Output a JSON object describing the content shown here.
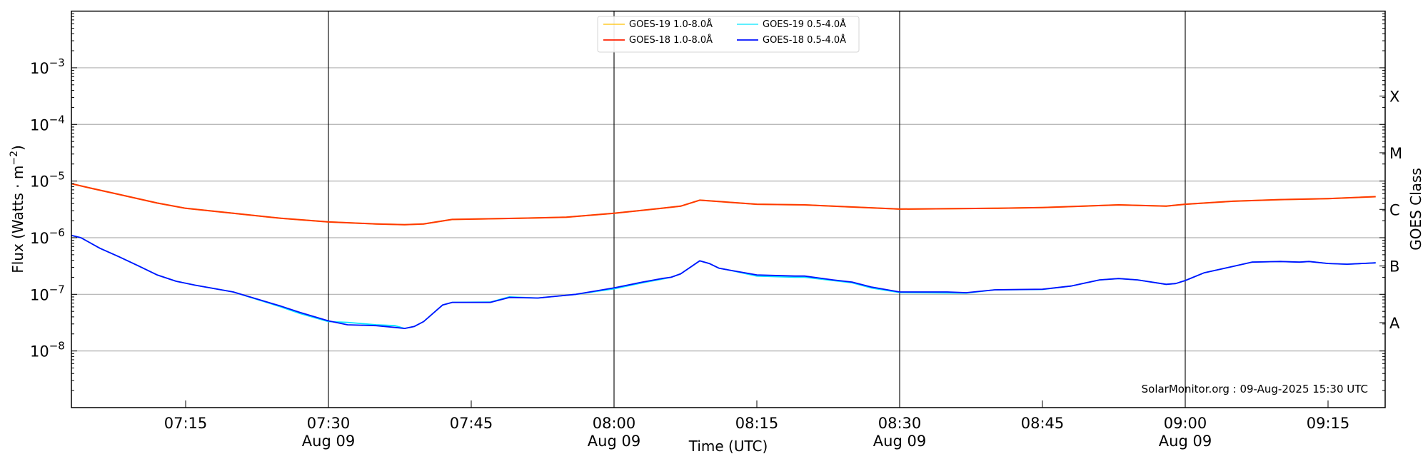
{
  "chart_data": {
    "type": "line",
    "title": "",
    "xlabel": "Time (UTC)",
    "ylabel": "Flux (Watts · m",
    "ylabel_sup": "−2",
    "ylabel_end": ")",
    "y2label": "GOES Class",
    "watermark": "SolarMonitor.org : 09-Aug-2025 15:30 UTC",
    "yscale": "log",
    "ylim": [
      1e-09,
      0.01
    ],
    "xlim": [
      "07:03",
      "09:21"
    ],
    "grid": true,
    "legend_placement": "top-center",
    "yticks": [
      {
        "exp": -3,
        "base": "10",
        "sup": "−3"
      },
      {
        "exp": -4,
        "base": "10",
        "sup": "−4"
      },
      {
        "exp": -5,
        "base": "10",
        "sup": "−5"
      },
      {
        "exp": -6,
        "base": "10",
        "sup": "−6"
      },
      {
        "exp": -7,
        "base": "10",
        "sup": "−7"
      },
      {
        "exp": -8,
        "base": "10",
        "sup": "−8"
      }
    ],
    "xticks": [
      {
        "t": "07:15",
        "label": "07:15",
        "date": ""
      },
      {
        "t": "07:30",
        "label": "07:30",
        "date": "Aug 09"
      },
      {
        "t": "07:45",
        "label": "07:45",
        "date": ""
      },
      {
        "t": "08:00",
        "label": "08:00",
        "date": "Aug 09"
      },
      {
        "t": "08:15",
        "label": "08:15",
        "date": ""
      },
      {
        "t": "08:30",
        "label": "08:30",
        "date": "Aug 09"
      },
      {
        "t": "08:45",
        "label": "08:45",
        "date": ""
      },
      {
        "t": "09:00",
        "label": "09:00",
        "date": "Aug 09"
      },
      {
        "t": "09:15",
        "label": "09:15",
        "date": ""
      }
    ],
    "vlines": [
      "07:30",
      "08:00",
      "08:30",
      "09:00"
    ],
    "classes": [
      {
        "label": "X",
        "exp": -3.5
      },
      {
        "label": "M",
        "exp": -4.5
      },
      {
        "label": "C",
        "exp": -5.5
      },
      {
        "label": "B",
        "exp": -6.5
      },
      {
        "label": "A",
        "exp": -7.5
      }
    ],
    "series": [
      {
        "name": "GOES-19 1.0-8.0Å",
        "color": "#ffc000",
        "x": [
          "07:03",
          "07:05",
          "07:08",
          "07:12",
          "07:15",
          "07:20",
          "07:25",
          "07:30",
          "07:35",
          "07:38",
          "07:40",
          "07:43",
          "07:50",
          "07:55",
          "08:00",
          "08:05",
          "08:07",
          "08:09",
          "08:15",
          "08:20",
          "08:30",
          "08:40",
          "08:45",
          "08:53",
          "08:58",
          "09:00",
          "09:05",
          "09:10",
          "09:15",
          "09:20"
        ],
        "y": [
          9e-06,
          7.5e-06,
          5.8e-06,
          4.1e-06,
          3.3e-06,
          2.7e-06,
          2.2e-06,
          1.9e-06,
          1.75e-06,
          1.7e-06,
          1.75e-06,
          2.1e-06,
          2.2e-06,
          2.3e-06,
          2.7e-06,
          3.3e-06,
          3.6e-06,
          4.6e-06,
          3.9e-06,
          3.8e-06,
          3.2e-06,
          3.3e-06,
          3.4e-06,
          3.8e-06,
          3.6e-06,
          3.9e-06,
          4.4e-06,
          4.7e-06,
          4.9e-06,
          5.3e-06
        ]
      },
      {
        "name": "GOES-18 1.0-8.0Å",
        "color": "#ff2000",
        "x": [
          "07:03",
          "07:05",
          "07:08",
          "07:12",
          "07:15",
          "07:20",
          "07:25",
          "07:30",
          "07:35",
          "07:38",
          "07:40",
          "07:43",
          "07:50",
          "07:55",
          "08:00",
          "08:05",
          "08:07",
          "08:09",
          "08:15",
          "08:20",
          "08:30",
          "08:40",
          "08:45",
          "08:53",
          "08:58",
          "09:00",
          "09:05",
          "09:10",
          "09:15",
          "09:20"
        ],
        "y": [
          9e-06,
          7.5e-06,
          5.8e-06,
          4.1e-06,
          3.3e-06,
          2.7e-06,
          2.2e-06,
          1.9e-06,
          1.75e-06,
          1.7e-06,
          1.75e-06,
          2.1e-06,
          2.2e-06,
          2.3e-06,
          2.7e-06,
          3.3e-06,
          3.6e-06,
          4.6e-06,
          3.9e-06,
          3.8e-06,
          3.2e-06,
          3.3e-06,
          3.4e-06,
          3.8e-06,
          3.6e-06,
          3.9e-06,
          4.4e-06,
          4.7e-06,
          4.9e-06,
          5.3e-06
        ]
      },
      {
        "name": "GOES-19 0.5-4.0Å",
        "color": "#00e5ff",
        "x": [
          "07:03",
          "07:04",
          "07:06",
          "07:08",
          "07:10",
          "07:12",
          "07:14",
          "07:16",
          "07:20",
          "07:25",
          "07:27",
          "07:30",
          "07:32",
          "07:35",
          "07:37",
          "07:38",
          "07:39",
          "07:40",
          "07:42",
          "07:43",
          "07:47",
          "07:49",
          "07:52",
          "07:56",
          "08:00",
          "08:03",
          "08:05",
          "08:06",
          "08:07",
          "08:08",
          "08:09",
          "08:10",
          "08:11",
          "08:12",
          "08:15",
          "08:19",
          "08:20",
          "08:23",
          "08:25",
          "08:27",
          "08:30",
          "08:35",
          "08:37",
          "08:40",
          "08:45",
          "08:48",
          "08:51",
          "08:53",
          "08:55",
          "08:58",
          "08:59",
          "09:00",
          "09:02",
          "09:05",
          "09:07",
          "09:10",
          "09:12",
          "09:13",
          "09:15",
          "09:17",
          "09:20"
        ],
        "y": [
          1.1e-06,
          1e-06,
          6.5e-07,
          4.6e-07,
          3.2e-07,
          2.2e-07,
          1.7e-07,
          1.45e-07,
          1.1e-07,
          6e-08,
          4.6e-08,
          3.3e-08,
          3.2e-08,
          2.9e-08,
          2.8e-08,
          2.5e-08,
          2.7e-08,
          3.3e-08,
          6.5e-08,
          7.2e-08,
          7.3e-08,
          9e-08,
          8.6e-08,
          1e-07,
          1.25e-07,
          1.6e-07,
          1.85e-07,
          2e-07,
          2.3e-07,
          3e-07,
          3.9e-07,
          3.5e-07,
          2.9e-07,
          2.7e-07,
          2.1e-07,
          2e-07,
          2e-07,
          1.75e-07,
          1.6e-07,
          1.3e-07,
          1.08e-07,
          1.06e-07,
          1.05e-07,
          1.2e-07,
          1.22e-07,
          1.4e-07,
          1.8e-07,
          1.9e-07,
          1.8e-07,
          1.5e-07,
          1.55e-07,
          1.75e-07,
          2.4e-07,
          3.1e-07,
          3.7e-07,
          3.8e-07,
          3.7e-07,
          3.8e-07,
          3.5e-07,
          3.4e-07,
          3.6e-07
        ]
      },
      {
        "name": "GOES-18 0.5-4.0Å",
        "color": "#0010ff",
        "x": [
          "07:03",
          "07:04",
          "07:06",
          "07:08",
          "07:10",
          "07:12",
          "07:14",
          "07:16",
          "07:20",
          "07:25",
          "07:27",
          "07:30",
          "07:32",
          "07:35",
          "07:37",
          "07:38",
          "07:39",
          "07:40",
          "07:42",
          "07:43",
          "07:47",
          "07:49",
          "07:52",
          "07:56",
          "08:00",
          "08:03",
          "08:05",
          "08:06",
          "08:07",
          "08:08",
          "08:09",
          "08:10",
          "08:11",
          "08:12",
          "08:15",
          "08:19",
          "08:20",
          "08:23",
          "08:25",
          "08:27",
          "08:30",
          "08:35",
          "08:37",
          "08:40",
          "08:45",
          "08:48",
          "08:51",
          "08:53",
          "08:55",
          "08:58",
          "08:59",
          "09:00",
          "09:02",
          "09:05",
          "09:07",
          "09:10",
          "09:12",
          "09:13",
          "09:15",
          "09:17",
          "09:20"
        ],
        "y": [
          1.1e-06,
          1e-06,
          6.5e-07,
          4.6e-07,
          3.2e-07,
          2.2e-07,
          1.7e-07,
          1.45e-07,
          1.1e-07,
          6.2e-08,
          4.8e-08,
          3.4e-08,
          2.9e-08,
          2.8e-08,
          2.6e-08,
          2.5e-08,
          2.7e-08,
          3.3e-08,
          6.5e-08,
          7.2e-08,
          7.2e-08,
          8.8e-08,
          8.6e-08,
          1e-07,
          1.3e-07,
          1.65e-07,
          1.9e-07,
          2e-07,
          2.3e-07,
          3e-07,
          3.9e-07,
          3.5e-07,
          2.9e-07,
          2.7e-07,
          2.2e-07,
          2.1e-07,
          2.1e-07,
          1.8e-07,
          1.65e-07,
          1.35e-07,
          1.1e-07,
          1.1e-07,
          1.07e-07,
          1.2e-07,
          1.23e-07,
          1.4e-07,
          1.8e-07,
          1.9e-07,
          1.8e-07,
          1.5e-07,
          1.55e-07,
          1.75e-07,
          2.4e-07,
          3.1e-07,
          3.7e-07,
          3.8e-07,
          3.7e-07,
          3.8e-07,
          3.5e-07,
          3.4e-07,
          3.6e-07
        ]
      }
    ]
  }
}
